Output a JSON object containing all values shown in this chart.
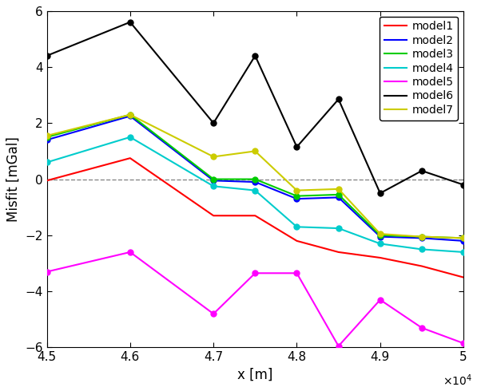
{
  "x": [
    45000,
    46000,
    47000,
    47500,
    48000,
    48500,
    49000,
    49500,
    50000
  ],
  "model1": [
    -0.05,
    0.75,
    -1.3,
    -1.3,
    -2.2,
    -2.6,
    -2.8,
    -3.1,
    -3.5
  ],
  "model2": [
    1.4,
    2.25,
    -0.05,
    -0.1,
    -0.7,
    -0.65,
    -2.05,
    -2.1,
    -2.2
  ],
  "model3": [
    1.5,
    2.3,
    0.0,
    0.0,
    -0.6,
    -0.55,
    -2.0,
    -2.05,
    -2.1
  ],
  "model4": [
    0.6,
    1.5,
    -0.25,
    -0.4,
    -1.7,
    -1.75,
    -2.3,
    -2.5,
    -2.6
  ],
  "model5": [
    -3.3,
    -2.6,
    -4.8,
    -3.35,
    -3.35,
    -5.95,
    -4.3,
    -5.3,
    -5.85
  ],
  "model6": [
    4.4,
    5.6,
    2.0,
    4.4,
    1.15,
    2.85,
    -0.5,
    0.3,
    -0.2
  ],
  "model7": [
    1.55,
    2.3,
    0.8,
    1.0,
    -0.4,
    -0.35,
    -1.95,
    -2.05,
    -2.1
  ],
  "colors": {
    "model1": "#ff0000",
    "model2": "#0000ff",
    "model3": "#00cc00",
    "model4": "#00cccc",
    "model5": "#ff00ff",
    "model6": "#000000",
    "model7": "#cccc00"
  },
  "xlim": [
    45000,
    50000
  ],
  "ylim": [
    -6,
    6
  ],
  "xlabel": "x [m]",
  "ylabel": "Misfit [mGal]",
  "xticks": [
    45000,
    46000,
    47000,
    48000,
    49000,
    50000
  ],
  "yticks": [
    -6,
    -4,
    -2,
    0,
    2,
    4,
    6
  ],
  "xtick_labels": [
    "4.5",
    "4.6",
    "4.7",
    "4.8",
    "4.9",
    "5"
  ],
  "models_with_markers": [
    "model2",
    "model3",
    "model4",
    "model5",
    "model6",
    "model7"
  ],
  "model_order": [
    "model1",
    "model2",
    "model3",
    "model4",
    "model5",
    "model6",
    "model7"
  ]
}
